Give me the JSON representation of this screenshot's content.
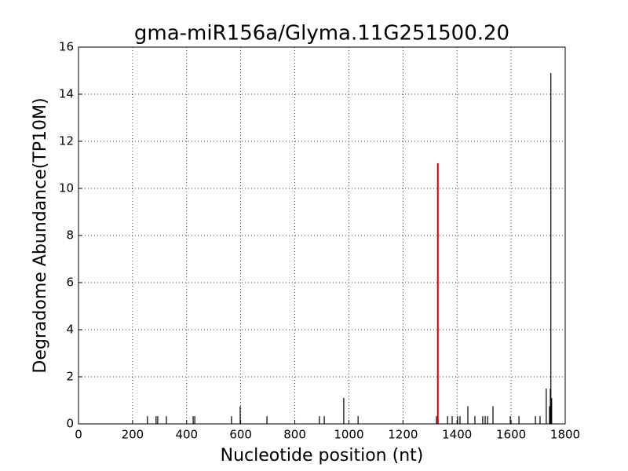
{
  "chart_data": {
    "type": "stem",
    "title": "gma-miR156a/Glyma.11G251500.20",
    "x_label": "Nucleotide position (nt)",
    "y_label": "Degradome Abundance(TP10M)",
    "xlim": [
      0,
      1800
    ],
    "xticks": [
      0,
      200,
      400,
      600,
      800,
      1000,
      1200,
      1400,
      1600,
      1800
    ],
    "ylim": [
      0,
      16
    ],
    "yticks": [
      0,
      2,
      4,
      6,
      8,
      10,
      12,
      14,
      16
    ],
    "grid": true,
    "series": [
      {
        "color": "#000000",
        "x": [
          255,
          287,
          293,
          325,
          424,
          430,
          566,
          598,
          697,
          891,
          909,
          981,
          1034,
          1324,
          1365,
          1382,
          1402,
          1411,
          1440,
          1466,
          1495,
          1504,
          1513,
          1533,
          1597,
          1629,
          1690,
          1707,
          1730,
          1742,
          1745,
          1747,
          1750
        ],
        "values": [
          0.33,
          0.33,
          0.33,
          0.33,
          0.33,
          0.33,
          0.33,
          0.75,
          0.33,
          0.33,
          0.33,
          1.1,
          0.33,
          0.33,
          0.33,
          0.33,
          0.33,
          0.33,
          0.75,
          0.33,
          0.33,
          0.33,
          0.33,
          0.75,
          0.33,
          0.33,
          0.33,
          0.33,
          1.5,
          0.75,
          1.5,
          14.9,
          1.1
        ]
      },
      {
        "color": "#cc0000",
        "x": [
          1329
        ],
        "values": [
          11.07
        ]
      }
    ]
  }
}
